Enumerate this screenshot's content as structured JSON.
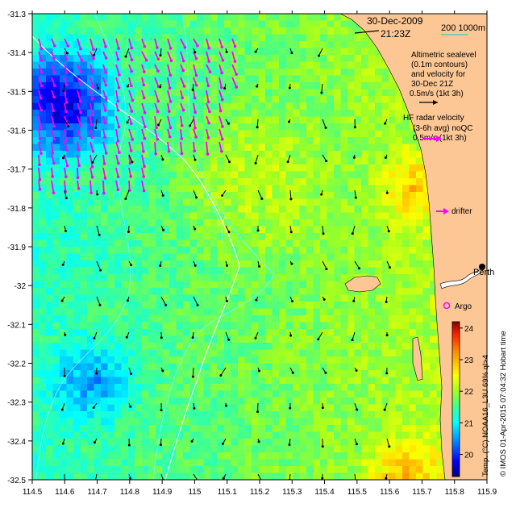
{
  "map": {
    "header": {
      "date": "30-Dec-2009",
      "time": "21:23Z"
    },
    "scale_bar": {
      "label": "200  1000m"
    },
    "legend": {
      "altimetry_lines": [
        "Altimetric sealevel",
        "(0.1m contours)",
        "and velocity for",
        "30-Dec 21Z",
        "0.5m/s (1kt 3h)"
      ],
      "hf_radar_lines": [
        "HF radar velocity",
        "(3-6h avg) noQC",
        "0.5m/s (1kt 3h)"
      ],
      "drifter": "drifter",
      "argo": "Argo",
      "place": "Perth"
    },
    "axes": {
      "lon_ticks": [
        "114.5",
        "114.6",
        "114.7",
        "114.8",
        "114.9",
        "115",
        "115.1",
        "115.2",
        "115.3",
        "115.4",
        "115.5",
        "115.6",
        "115.7",
        "115.8",
        "115.9"
      ],
      "lat_ticks": [
        "-31.3",
        "-31.4",
        "-31.5",
        "-31.6",
        "-31.7",
        "-31.8",
        "-31.9",
        "-32",
        "-32.1",
        "-32.2",
        "-32.3",
        "-32.4",
        "-32.5"
      ],
      "lon_range": [
        114.5,
        115.9
      ],
      "lat_range": [
        -32.5,
        -31.3
      ]
    },
    "colorbar": {
      "ticks": [
        "24",
        "23",
        "22",
        "21",
        "20"
      ],
      "range": [
        19.3,
        24.2
      ],
      "colors": [
        "#00007f",
        "#0000ff",
        "#00a0ff",
        "#00ffff",
        "#40ff90",
        "#a0ff20",
        "#ffff00",
        "#ff9000",
        "#ff2000",
        "#800000"
      ],
      "title": "Temp. (°C) NOAA16_L3U 69% ql>4",
      "credit": "© IMOS 01-Apr-2015 07:04:32 Hobart time"
    },
    "colors": {
      "land": "#fcc794",
      "radar_arrow": "#ff00ff",
      "contour": "#66ffff",
      "shelf_line": "#ffffff"
    }
  }
}
